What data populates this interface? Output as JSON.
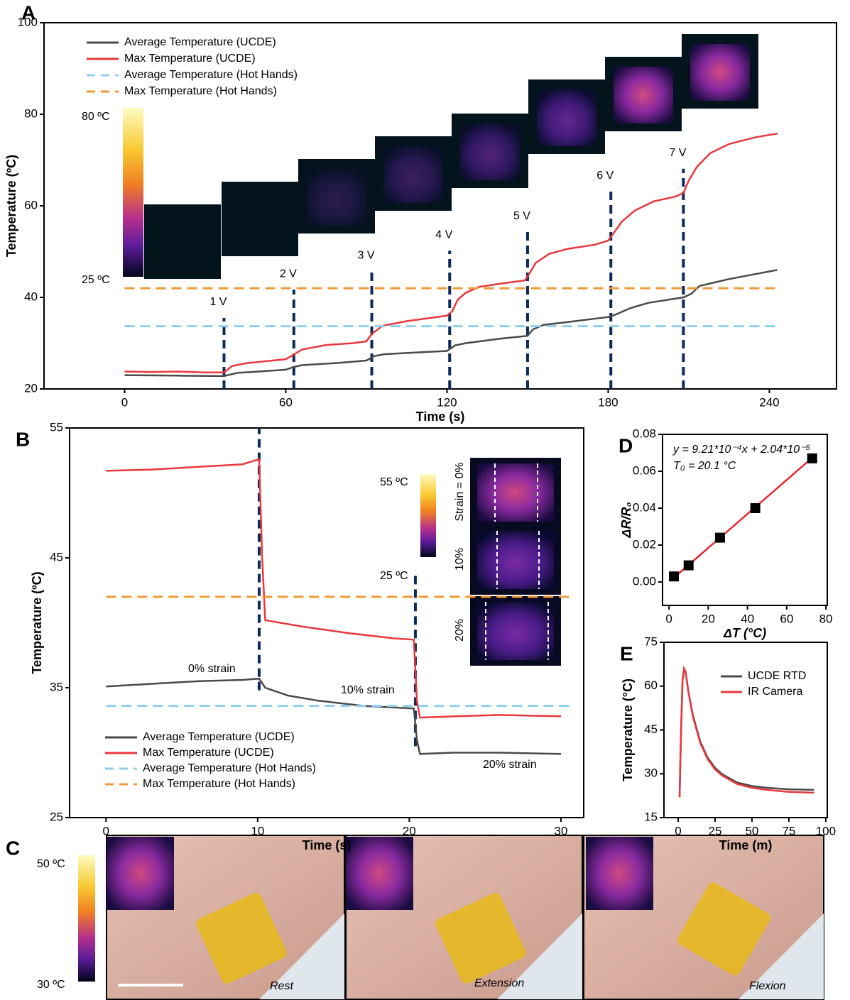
{
  "chart_data": [
    {
      "type": "line",
      "panel_label": "A",
      "xlabel": "Time (s)",
      "ylabel": "Temperature (ºC)",
      "xlim": [
        -30,
        265
      ],
      "ylim": [
        20,
        100
      ],
      "xticks": [
        0,
        60,
        120,
        180,
        240
      ],
      "yticks": [
        20,
        40,
        60,
        80,
        100
      ],
      "legend": "upper left",
      "colorbar": [
        "80 ºC",
        "25 ºC"
      ],
      "series": [
        {
          "name": "Average Temperature (UCDE)",
          "color": "#4a4a4a",
          "dash": false,
          "x": [
            0,
            20,
            37,
            42,
            50,
            60,
            63,
            66,
            80,
            90,
            93,
            97,
            110,
            120,
            123,
            127,
            140,
            150,
            152,
            156,
            165,
            180,
            183,
            188,
            195,
            208,
            211,
            214,
            225,
            243
          ],
          "values": [
            23.0,
            22.9,
            22.8,
            23.5,
            23.8,
            24.2,
            24.8,
            25.2,
            25.7,
            26.2,
            27.2,
            27.6,
            28.0,
            28.3,
            29.5,
            30.0,
            31.0,
            31.6,
            33.0,
            34.0,
            34.6,
            35.7,
            36.3,
            37.6,
            38.8,
            40.0,
            40.8,
            42.5,
            44.0,
            46.0
          ]
        },
        {
          "name": "Max Temperature (UCDE)",
          "color": "#e8383d",
          "dash": false,
          "x": [
            0,
            10,
            20,
            30,
            37,
            40,
            45,
            55,
            60,
            63,
            66,
            75,
            85,
            90,
            92,
            96,
            105,
            115,
            120,
            122,
            124,
            127,
            132,
            140,
            149,
            151,
            153,
            158,
            165,
            175,
            180,
            182,
            185,
            190,
            197,
            205,
            208,
            210,
            213,
            218,
            225,
            235,
            243
          ],
          "values": [
            23.8,
            23.7,
            23.8,
            23.6,
            23.6,
            25.0,
            25.6,
            26.2,
            26.5,
            27.5,
            28.6,
            29.6,
            30.0,
            30.4,
            32.0,
            33.8,
            34.8,
            35.6,
            36.0,
            37.0,
            39.5,
            41.0,
            42.3,
            43.0,
            43.7,
            45.5,
            47.5,
            49.5,
            50.6,
            51.5,
            52.4,
            54.0,
            56.5,
            59.0,
            61.0,
            62.0,
            62.8,
            65.5,
            68.5,
            71.5,
            73.5,
            75.0,
            75.8
          ]
        },
        {
          "name": "Average Temperature (Hot Hands)",
          "color": "#8fd0f0",
          "dash": true,
          "x": [
            0,
            243
          ],
          "values": [
            33.7,
            33.7
          ]
        },
        {
          "name": "Max Temperature (Hot Hands)",
          "color": "#f29a38",
          "dash": true,
          "x": [
            0,
            243
          ],
          "values": [
            42,
            42
          ]
        }
      ],
      "markers": [
        {
          "label": "1 V",
          "x": 37,
          "ymax": 35.5
        },
        {
          "label": "2 V",
          "x": 63,
          "ymax": 41.7
        },
        {
          "label": "3 V",
          "x": 92,
          "ymax": 45.7
        },
        {
          "label": "4 V",
          "x": 121,
          "ymax": 50.2
        },
        {
          "label": "5 V",
          "x": 150,
          "ymax": 54.3
        },
        {
          "label": "6 V",
          "x": 181,
          "ymax": 63.1
        },
        {
          "label": "7 V",
          "x": 208,
          "ymax": 68.1
        }
      ]
    },
    {
      "type": "line",
      "panel_label": "B",
      "xlabel": "Time (s)",
      "ylabel": "Temperature (ºC)",
      "xlim": [
        -2.4,
        31.5
      ],
      "ylim": [
        25,
        55
      ],
      "xticks": [
        0,
        10,
        20,
        30
      ],
      "yticks": [
        25,
        35,
        45,
        55
      ],
      "legend": "lower left",
      "colorbar": [
        "55 ºC",
        "25 ºC"
      ],
      "inset_labels": [
        "Strain = 0%",
        "10%",
        "20%"
      ],
      "annotations": [
        "0% strain",
        "10% strain",
        "20% strain"
      ],
      "series": [
        {
          "name": "Average Temperature (UCDE)",
          "color": "#4a4a4a",
          "dash": false,
          "x": [
            0,
            3,
            6,
            9,
            10.1,
            10.5,
            12,
            14,
            17,
            20.3,
            20.5,
            20.7,
            23,
            26,
            30
          ],
          "values": [
            35.1,
            35.3,
            35.5,
            35.6,
            35.7,
            35.0,
            34.4,
            34.0,
            33.6,
            33.4,
            31,
            29.9,
            30.0,
            30.0,
            29.9
          ]
        },
        {
          "name": "Max Temperature (UCDE)",
          "color": "#e8383d",
          "dash": false,
          "x": [
            0,
            3,
            6,
            9,
            10.1,
            10.3,
            10.5,
            13,
            16,
            19,
            20.3,
            20.5,
            20.7,
            23,
            26,
            30
          ],
          "values": [
            51.7,
            51.8,
            52.0,
            52.2,
            52.6,
            45,
            40.2,
            39.7,
            39.2,
            38.8,
            38.7,
            34,
            32.7,
            32.8,
            32.9,
            32.8
          ]
        },
        {
          "name": "Average Temperature (Hot Hands)",
          "color": "#8fd0f0",
          "dash": true,
          "x": [
            0,
            30.8
          ],
          "values": [
            33.6,
            33.6
          ]
        },
        {
          "name": "Max Temperature (Hot Hands)",
          "color": "#f29a38",
          "dash": true,
          "x": [
            0,
            30.8
          ],
          "values": [
            42,
            42
          ]
        }
      ],
      "markers": [
        {
          "x": 10.1,
          "ymin": 34.8,
          "ymax": 55
        },
        {
          "x": 20.4,
          "ymin": 30.5,
          "ymax": 44
        }
      ]
    },
    {
      "type": "scatter",
      "panel_label": "D",
      "xlabel": "ΔT (°C)",
      "ylabel": "ΔR/R₀",
      "xlim": [
        -3.3,
        80.7
      ],
      "ylim": [
        -0.0127,
        0.08
      ],
      "xticks": [
        0,
        20,
        40,
        60,
        80
      ],
      "yticks": [
        {
          "value": 0,
          "label": "0.00"
        },
        0.02,
        0.04,
        0.06,
        0.08
      ],
      "annotations": [
        "y = 9.21*10⁻⁴x + 2.04*10⁻⁵",
        "T₀ = 20.1 °C"
      ],
      "series": [
        {
          "type": "scatter",
          "color": "#000000",
          "x": [
            2.5,
            10,
            26,
            44,
            73
          ],
          "values": [
            0.003,
            0.009,
            0.024,
            0.04,
            0.067
          ]
        },
        {
          "type": "line",
          "color": "#e8262c",
          "x": [
            2.5,
            74
          ],
          "values": [
            0.0023,
            0.0682
          ]
        }
      ]
    },
    {
      "type": "line",
      "panel_label": "E",
      "xlabel": "Time (m)",
      "ylabel": "Temperature (°C)",
      "xlim": [
        -9.6,
        101
      ],
      "ylim": [
        15,
        75
      ],
      "xticks": [
        0,
        25,
        50,
        75,
        100
      ],
      "yticks": [
        15,
        30,
        45,
        60,
        75
      ],
      "legend": "upper right",
      "series": [
        {
          "name": "UCDE RTD",
          "color": "#4a4a4a",
          "dash": false,
          "x": [
            1,
            2,
            3,
            4,
            5,
            7,
            10,
            15,
            20,
            25,
            30,
            40,
            50,
            60,
            75,
            92
          ],
          "values": [
            22,
            45,
            62,
            66,
            65,
            58,
            50,
            41,
            35.5,
            32,
            29.8,
            27,
            25.8,
            25.2,
            24.7,
            24.5
          ]
        },
        {
          "name": "IR Camera",
          "color": "#e8383d",
          "dash": false,
          "x": [
            1,
            2,
            3,
            4,
            5,
            7,
            10,
            15,
            20,
            25,
            30,
            40,
            50,
            60,
            75,
            92
          ],
          "values": [
            22,
            45,
            62,
            66,
            65,
            58,
            49.5,
            40.5,
            35,
            31.5,
            29.3,
            26.5,
            25.2,
            24.5,
            23.8,
            23.5
          ]
        }
      ]
    }
  ],
  "photos": {
    "panel_label": "C",
    "colorbar": [
      "50 ºC",
      "30 ºC"
    ],
    "captions": [
      "Rest",
      "Extension",
      "Flexion"
    ]
  }
}
